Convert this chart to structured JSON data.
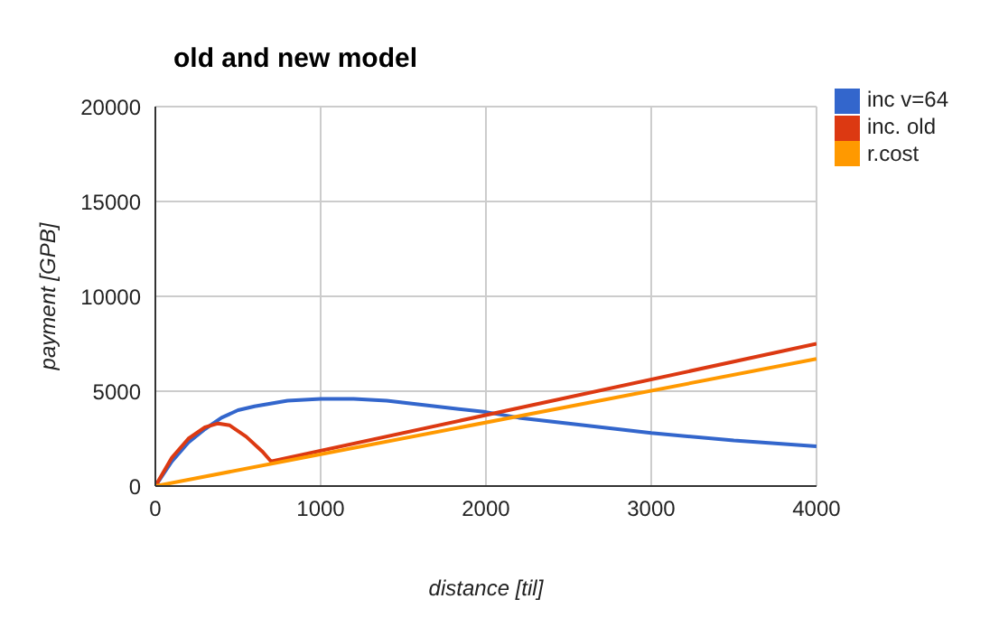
{
  "chart_data": {
    "type": "line",
    "title": "old and new model",
    "xlabel": "distance [til]",
    "ylabel": "payment [GPB]",
    "xlim": [
      0,
      4000
    ],
    "xticks": [
      0,
      1000,
      2000,
      3000,
      4000
    ],
    "ylim": [
      0,
      20000
    ],
    "yticks": [
      0,
      5000,
      10000,
      15000,
      20000
    ],
    "grid": true,
    "legend": "right",
    "marker": "none",
    "series": [
      {
        "name": "inc v=64",
        "color": "#3366cc",
        "x": [
          0,
          100,
          200,
          300,
          400,
          500,
          600,
          800,
          1000,
          1200,
          1400,
          1600,
          1800,
          2000,
          2200,
          2500,
          3000,
          3500,
          4000
        ],
        "values": [
          0,
          1300,
          2300,
          3000,
          3600,
          4000,
          4200,
          4500,
          4600,
          4600,
          4500,
          4300,
          4100,
          3900,
          3600,
          3300,
          2800,
          2400,
          2100
        ]
      },
      {
        "name": "inc. old",
        "color": "#dc3912",
        "x": [
          0,
          100,
          200,
          300,
          380,
          450,
          550,
          650,
          700,
          4000
        ],
        "values": [
          0,
          1500,
          2500,
          3100,
          3300,
          3200,
          2600,
          1800,
          1300,
          7500
        ]
      },
      {
        "name": "r.cost",
        "color": "#ff9900",
        "x": [
          0,
          4000
        ],
        "values": [
          0,
          6700
        ]
      }
    ]
  }
}
